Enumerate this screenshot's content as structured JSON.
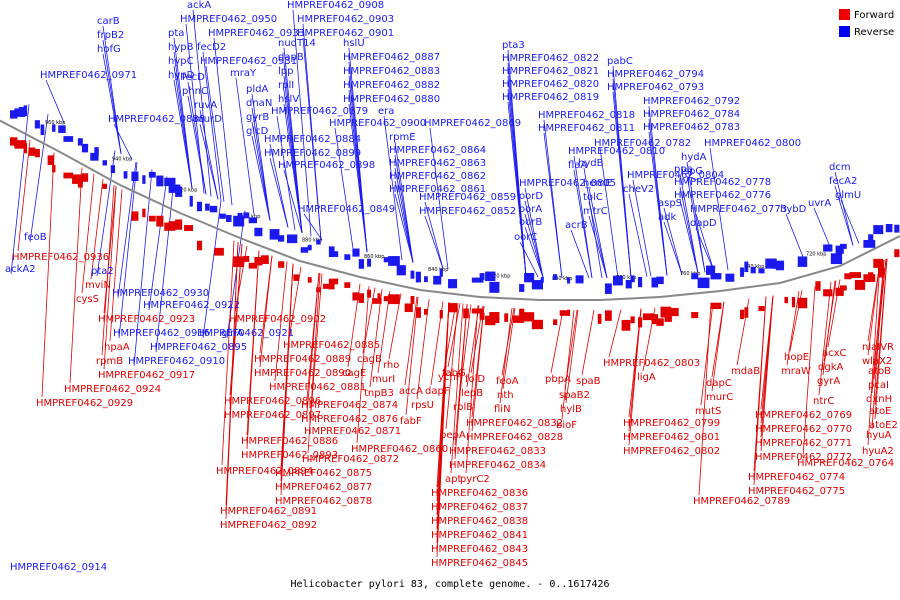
{
  "caption": "Helicobacter pylori 83, complete genome. - 0..1617426",
  "legend": [
    {
      "label": "Forward",
      "color": "#ee0000"
    },
    {
      "label": "Reverse",
      "color": "#0000ee"
    }
  ],
  "colors": {
    "forward": "#e00000",
    "reverse": "#1a1aee",
    "backbone": "#888888"
  },
  "kbp_ticks": [
    "960 kbp",
    "940 kbp",
    "920 kbp",
    "900 kbp",
    "880 kbp",
    "860 kbp",
    "840 kbp",
    "820 kbp",
    "800 kbp",
    "780 kbp",
    "760 kbp",
    "740 kbp",
    "720 kbp"
  ],
  "reverse_labels": [
    "carB",
    "frpB2",
    "hofG",
    "HMPREF0462_0971",
    "ackA",
    "HMPREF0462_0950",
    "pta",
    "hypB",
    "hypC",
    "hypD",
    "HMPREF0462_0933",
    "fecD2",
    "HMPREF0462_0931",
    "fecD",
    "phnC",
    "mraY",
    "ruvA",
    "murD",
    "pldA",
    "dnaN",
    "gyrB",
    "glcD",
    "HMPREF0462_0908",
    "HMPREF0462_0903",
    "HMPREF0462_0901",
    "nudT14",
    "dapB",
    "lpp",
    "rplI",
    "hslV",
    "hslU",
    "HMPREF0462_0887",
    "HMPREF0462_0883",
    "HMPREF0462_0882",
    "HMPREF0462_0880",
    "HMPREF0462_0879",
    "HMPREF0462_0900",
    "HMPREF0462_0884",
    "HMPREF0462_0899",
    "HMPREF0462_0898",
    "era",
    "HMPREF0462_0869",
    "rpmE",
    "HMPREF0462_0864",
    "HMPREF0462_0863",
    "HMPREF0462_0862",
    "HMPREF0462_0861",
    "HMPREF0462_0859",
    "HMPREF0462_0852",
    "HMPREF0462_0849",
    "HMPREF0462_0888",
    "pta3",
    "HMPREF0462_0822",
    "HMPREF0462_0821",
    "HMPREF0462_0820",
    "HMPREF0462_0819",
    "HMPREF0462_0818",
    "HMPREF0462_0811",
    "HMPREF0462_0810",
    "flaA",
    "hemE",
    "tolC",
    "mtrC",
    "acrB",
    "HMPREF0462_0805",
    "oorD",
    "oorA",
    "oorB",
    "oorC",
    "pabC",
    "HMPREF0462_0794",
    "HMPREF0462_0793",
    "HMPREF0462_0792",
    "HMPREF0462_0784",
    "HMPREF0462_0783",
    "HMPREF0462_0782",
    "HMPREF0462_0800",
    "hydA",
    "ispG",
    "hydB",
    "HMPREF0462_0804",
    "cheV2",
    "aspS",
    "adk",
    "ppa",
    "HMPREF0462_0778",
    "HMPREF0462_0776",
    "HMPREF0462_0773",
    "dapD",
    "hybD",
    "uvrA",
    "dcm",
    "fecA2",
    "glmU",
    "feoB",
    "ackA2",
    "pta2",
    "HMPREF0462_0930",
    "HMPREF0462_0922",
    "HMPREF0462_0916",
    "HMPREF0462_0921",
    "glnA",
    "HMPREF0462_0895",
    "HMPREF0462_0910",
    "HMPREF0462_0914"
  ],
  "forward_labels": [
    "HMPREF0462_0936",
    "mviN",
    "cysS",
    "HMPREF0462_0923",
    "hpaA",
    "rpmB",
    "HMPREF0462_0917",
    "HMPREF0462_0924",
    "HMPREF0462_0929",
    "HMPREF0462_0902",
    "HMPREF0462_0885",
    "HMPREF0462_0889",
    "HMPREF0462_0890",
    "HMPREF0462_0881",
    "HMPREF0462_0896",
    "HMPREF0462_0897",
    "HMPREF0462_0874",
    "HMPREF0462_0876",
    "HMPREF0462_0871",
    "HMPREF0462_0886",
    "HMPREF0462_0893",
    "HMPREF0462_0872",
    "HMPREF0462_0894",
    "HMPREF0462_0875",
    "HMPREF0462_0877",
    "HMPREF0462_0878",
    "HMPREF0462_0891",
    "HMPREF0462_0892",
    "cagB",
    "rho",
    "murI",
    "cagE",
    "tnpB3",
    "accA",
    "dapF",
    "fabG",
    "rpsU",
    "fabF",
    "ychF",
    "folD",
    "lepB",
    "rplB",
    "nth",
    "fliN",
    "feoA",
    "pepA",
    "HMPREF0462_0832",
    "HMPREF0462_0828",
    "HMPREF0462_0833",
    "HMPREF0462_0834",
    "pyrC2",
    "apt",
    "HMPREF0462_0860",
    "HMPREF0462_0836",
    "HMPREF0462_0837",
    "HMPREF0462_0838",
    "HMPREF0462_0841",
    "HMPREF0462_0843",
    "HMPREF0462_0845",
    "pbpA",
    "spaB",
    "spaB2",
    "hylB",
    "bioF",
    "HMPREF0462_0803",
    "ligA",
    "dapC",
    "murC",
    "mutS",
    "HMPREF0462_0799",
    "HMPREF0462_0801",
    "HMPREF0462_0802",
    "HMPREF0462_0789",
    "mdaB",
    "hopE",
    "mraW",
    "acxC",
    "dgkA",
    "gyrA",
    "ntrC",
    "HMPREF0462_0769",
    "HMPREF0462_0770",
    "HMPREF0462_0771",
    "HMPREF0462_0772",
    "HMPREF0462_0764",
    "HMPREF0462_0774",
    "HMPREF0462_0775",
    "nlaIVR",
    "wlaX2",
    "atoB",
    "pcaI",
    "dxnH",
    "atoE",
    "atoE2",
    "hyuA",
    "hyuA2"
  ]
}
